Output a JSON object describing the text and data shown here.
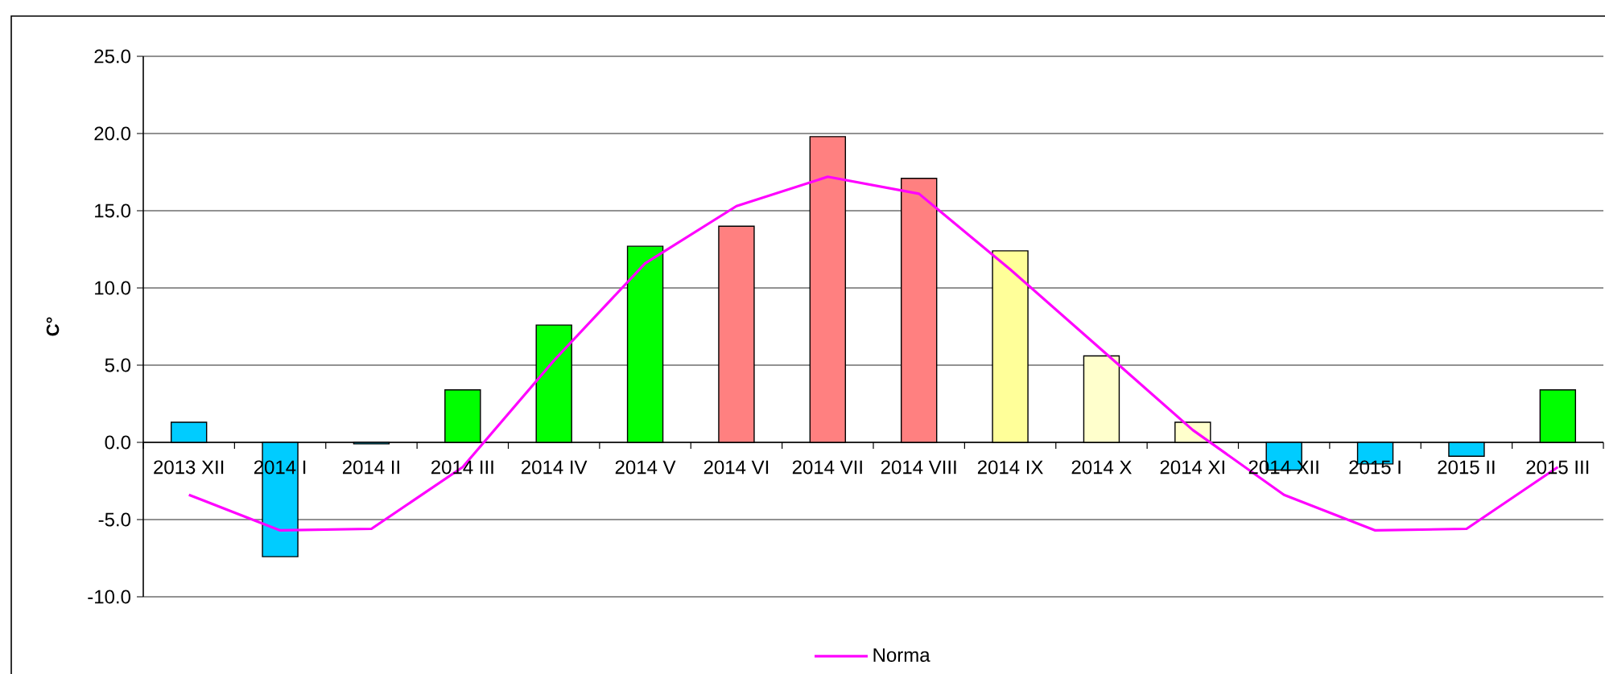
{
  "chart_data": {
    "type": "bar",
    "ylabel": "C°",
    "categories": [
      "2013 XII",
      "2014 I",
      "2014 II",
      "2014 III",
      "2014 IV",
      "2014 V",
      "2014 VI",
      "2014 VII",
      "2014 VIII",
      "2014 IX",
      "2014 X",
      "2014 XI",
      "2014 XII",
      "2015 I",
      "2015 II",
      "2015 III"
    ],
    "series": [
      {
        "colors": [
          "#00ccff",
          "#00ccff",
          "#00ccff",
          "#00ff00",
          "#00ff00",
          "#00ff00",
          "#ff8080",
          "#ff8080",
          "#ff8080",
          "#ffff99",
          "#ffffcc",
          "#ffffcc",
          "#00ccff",
          "#00ccff",
          "#00ccff",
          "#00ff00"
        ],
        "values": [
          1.3,
          -7.4,
          -0.1,
          3.4,
          7.6,
          12.7,
          14.0,
          19.8,
          17.1,
          12.4,
          5.6,
          1.3,
          -1.8,
          -1.4,
          -0.9,
          3.4
        ]
      },
      {
        "type": "line",
        "name": "Norma",
        "color": "#ff00ff",
        "values": [
          -3.4,
          -5.7,
          -5.6,
          -1.6,
          5.3,
          11.6,
          15.3,
          17.2,
          16.1,
          11.2,
          6.0,
          0.8,
          -3.4,
          -5.7,
          -5.6,
          -1.6
        ]
      }
    ],
    "ylim": [
      -10,
      25
    ],
    "yticks": [
      {
        "value": -10,
        "label": "-10.0"
      },
      {
        "value": -5,
        "label": "-5.0"
      },
      {
        "value": 0,
        "label": "0.0"
      },
      {
        "value": 5,
        "label": "5.0"
      },
      {
        "value": 10,
        "label": "10.0"
      },
      {
        "value": 15,
        "label": "15.0"
      },
      {
        "value": 20,
        "label": "20.0"
      },
      {
        "value": 25,
        "label": "25.0"
      }
    ],
    "grid": "y",
    "legend": "bottom",
    "marker": "none"
  }
}
